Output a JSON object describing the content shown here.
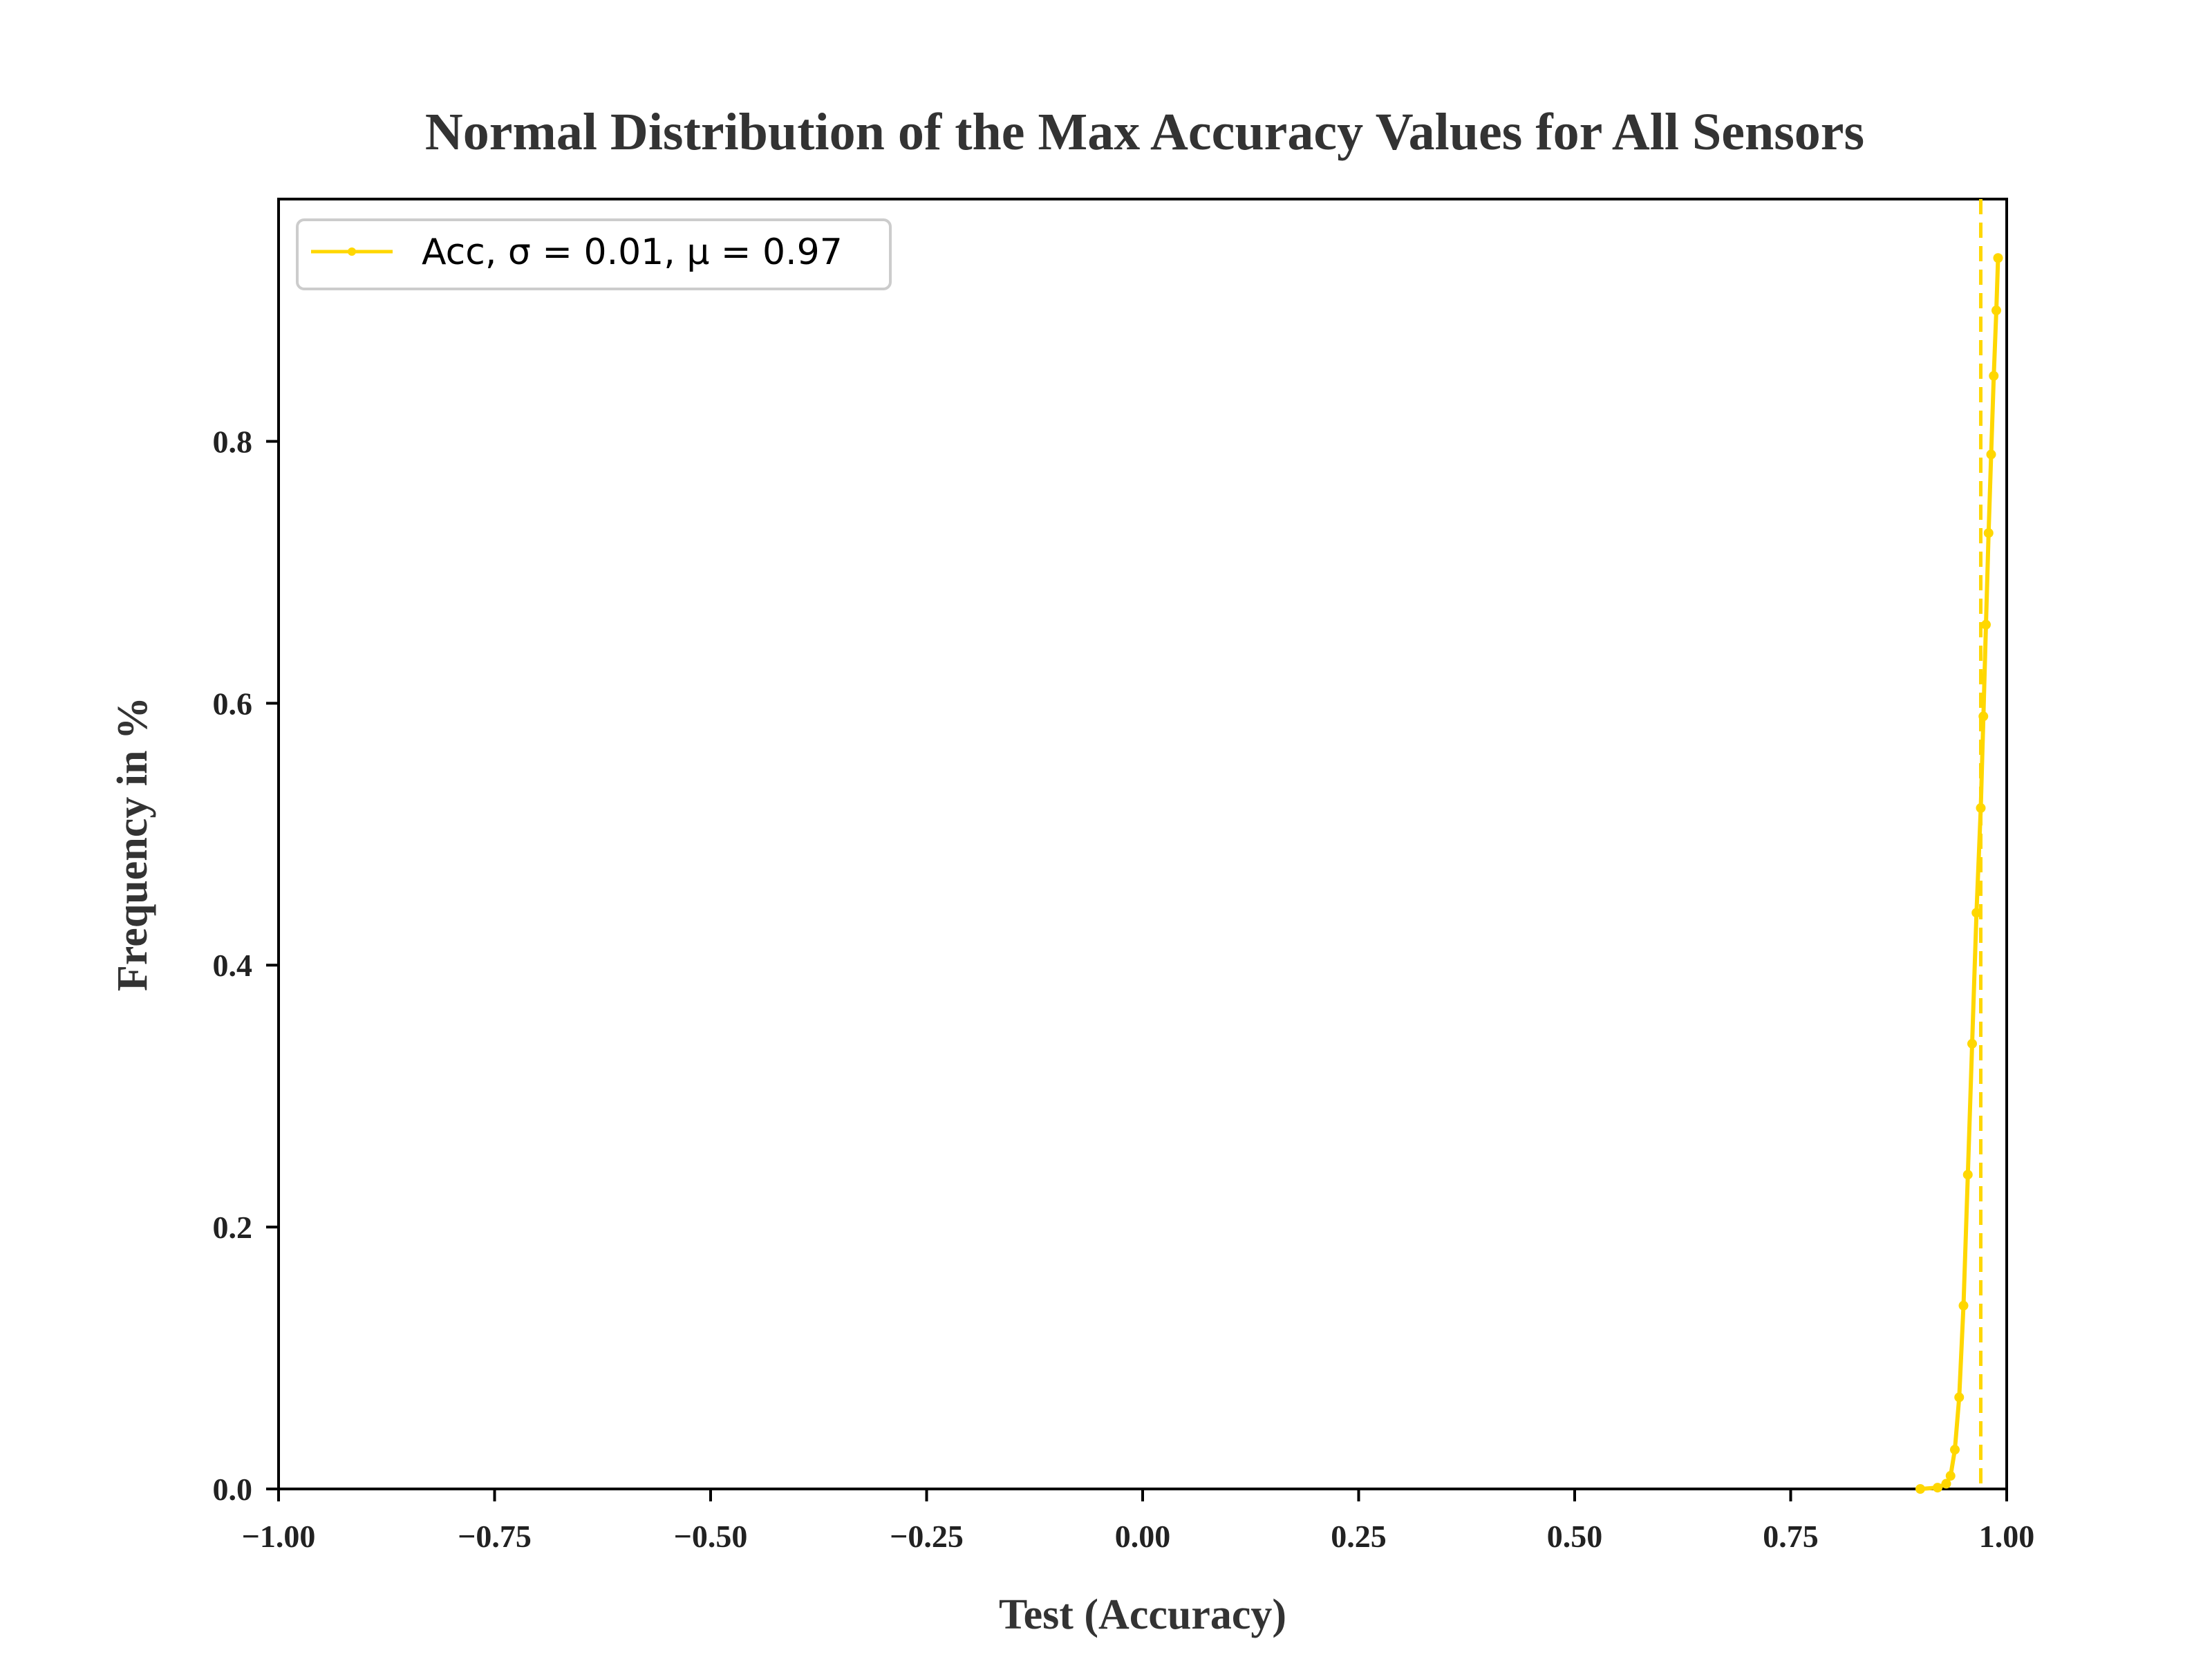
{
  "chart_data": {
    "type": "line",
    "title": "Normal Distribution of the Max Accuracy Values for All Sensors",
    "xlabel": "Test (Accuracy)",
    "ylabel": "Frequency in %",
    "xlim": [
      -1.0,
      1.0
    ],
    "ylim": [
      0.0,
      0.985
    ],
    "x_ticks": [
      "−1.00",
      "−0.75",
      "−0.50",
      "−0.25",
      "0.00",
      "0.25",
      "0.50",
      "0.75",
      "1.00"
    ],
    "x_tick_values": [
      -1.0,
      -0.75,
      -0.5,
      -0.25,
      0.0,
      0.25,
      0.5,
      0.75,
      1.0
    ],
    "y_ticks": [
      "0.0",
      "0.2",
      "0.4",
      "0.6",
      "0.8"
    ],
    "y_tick_values": [
      0.0,
      0.2,
      0.4,
      0.6,
      0.8
    ],
    "grid": false,
    "legend_position": "top-left",
    "series": [
      {
        "name": "Acc, σ = 0.01, μ = 0.97",
        "color": "#FFD700",
        "marker": "dot",
        "x": [
          0.9,
          0.92,
          0.93,
          0.935,
          0.94,
          0.945,
          0.95,
          0.955,
          0.96,
          0.965,
          0.97,
          0.973,
          0.976,
          0.979,
          0.982,
          0.985,
          0.988,
          0.99
        ],
        "y": [
          0.0,
          0.001,
          0.004,
          0.01,
          0.03,
          0.07,
          0.14,
          0.24,
          0.34,
          0.44,
          0.52,
          0.59,
          0.66,
          0.73,
          0.79,
          0.85,
          0.9,
          0.94
        ]
      }
    ],
    "mean_line": {
      "x": 0.97,
      "color": "#FFD700",
      "style": "dashed"
    }
  }
}
